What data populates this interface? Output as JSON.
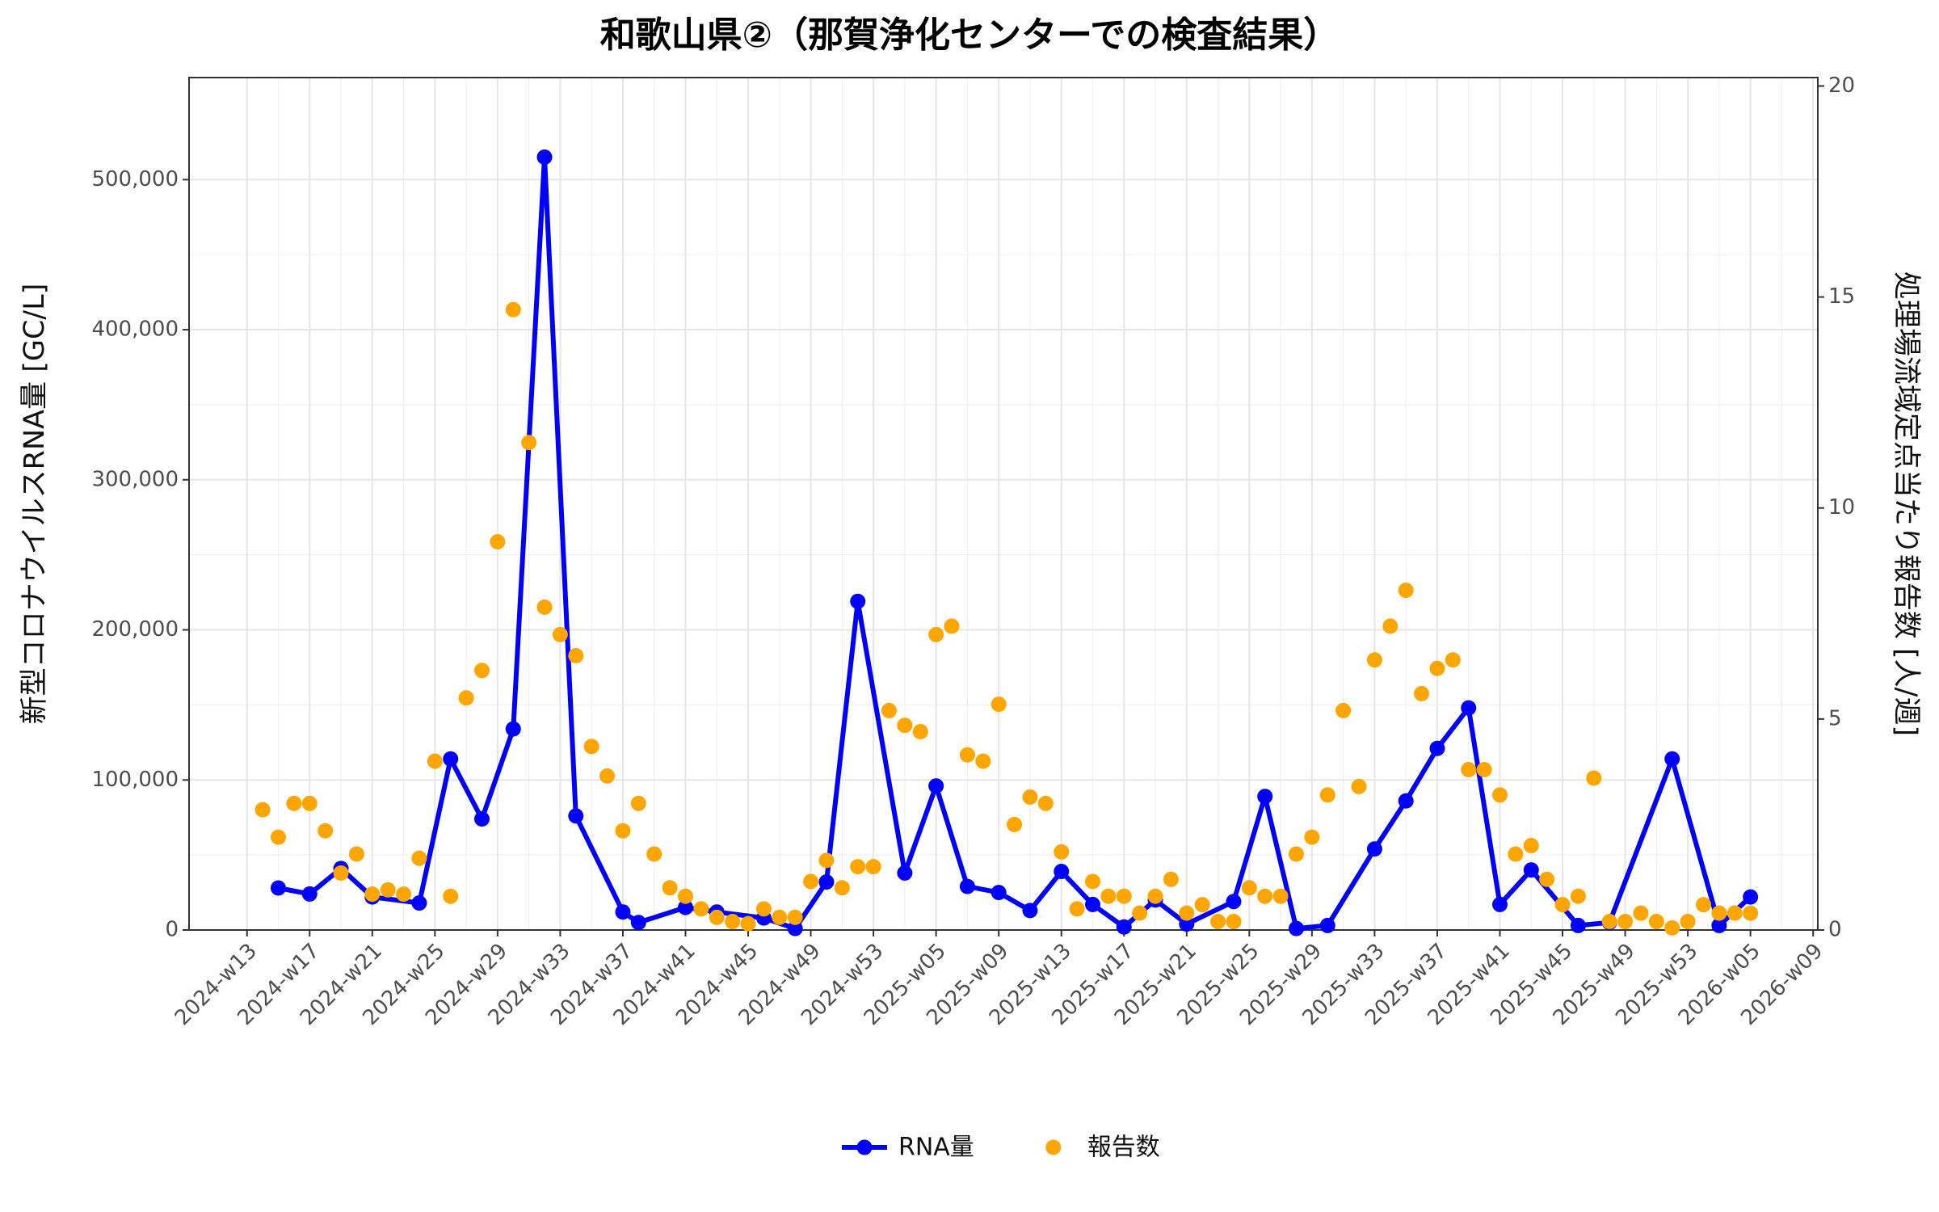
{
  "chart_data": {
    "type": "line",
    "title": "和歌山県②（那賀浄化センターでの検査結果）",
    "y_label": "新型コロナウイルスRNA量 [GC/L]",
    "y2_label": "処理場流域定点当たり報告数 [人/週]",
    "xticks": [
      "2024-w13",
      "2024-w17",
      "2024-w21",
      "2024-w25",
      "2024-w29",
      "2024-w33",
      "2024-w37",
      "2024-w41",
      "2024-w45",
      "2024-w49",
      "2024-w53",
      "2025-w05",
      "2025-w09",
      "2025-w13",
      "2025-w17",
      "2025-w21",
      "2025-w25",
      "2025-w29",
      "2025-w33",
      "2025-w37",
      "2025-w41",
      "2025-w45",
      "2025-w49",
      "2025-w53",
      "2026-w05",
      "2026-w09"
    ],
    "ylim": [
      0,
      568000
    ],
    "yticks": [
      0,
      {
        "value": 100000,
        "label": "100,000"
      },
      {
        "value": 200000,
        "label": "200,000"
      },
      {
        "value": 300000,
        "label": "300,000"
      },
      {
        "value": 400000,
        "label": "400,000"
      },
      {
        "value": 500000,
        "label": "500,000"
      }
    ],
    "y2lim": [
      0,
      20.2
    ],
    "y2ticks": [
      0,
      5,
      10,
      15,
      20
    ],
    "grid": true,
    "minor_grid": true,
    "legend_position": "bottom",
    "series": [
      {
        "name": "RNA量",
        "color": "#0000ff",
        "axis": "y",
        "mode": "lines+markers",
        "x": [
          "2024-w15",
          "2024-w17",
          "2024-w19",
          "2024-w21",
          "2024-w24",
          "2024-w26",
          "2024-w28",
          "2024-w30",
          "2024-w32",
          "2024-w34",
          "2024-w37",
          "2024-w38",
          "2024-w41",
          "2024-w43",
          "2024-w46",
          "2024-w48",
          "2024-w50",
          "2024-w52",
          "2025-w03",
          "2025-w05",
          "2025-w07",
          "2025-w09",
          "2025-w11",
          "2025-w13",
          "2025-w15",
          "2025-w17",
          "2025-w19",
          "2025-w21",
          "2025-w24",
          "2025-w26",
          "2025-w28",
          "2025-w30",
          "2025-w33",
          "2025-w35",
          "2025-w37",
          "2025-w39",
          "2025-w41",
          "2025-w43",
          "2025-w46",
          "2025-w48",
          "2025-w52",
          "2026-w03",
          "2026-w05"
        ],
        "values": [
          28000,
          24000,
          41000,
          22000,
          18000,
          114000,
          74000,
          134000,
          515000,
          76000,
          12000,
          5000,
          15000,
          12000,
          8000,
          1000,
          32000,
          219000,
          38000,
          96000,
          29000,
          25000,
          13000,
          39000,
          17000,
          2000,
          20000,
          4000,
          19000,
          89000,
          1000,
          3000,
          54000,
          86000,
          121000,
          148000,
          17000,
          40000,
          3000,
          5000,
          114000,
          3000,
          22000
        ]
      },
      {
        "name": "報告数",
        "color": "#ffa500",
        "axis": "y2",
        "mode": "markers",
        "x": [
          "2024-w14",
          "2024-w15",
          "2024-w16",
          "2024-w17",
          "2024-w18",
          "2024-w19",
          "2024-w20",
          "2024-w21",
          "2024-w22",
          "2024-w23",
          "2024-w24",
          "2024-w25",
          "2024-w26",
          "2024-w27",
          "2024-w28",
          "2024-w29",
          "2024-w30",
          "2024-w31",
          "2024-w32",
          "2024-w33",
          "2024-w34",
          "2024-w35",
          "2024-w36",
          "2024-w37",
          "2024-w38",
          "2024-w39",
          "2024-w40",
          "2024-w41",
          "2024-w42",
          "2024-w43",
          "2024-w44",
          "2024-w45",
          "2024-w46",
          "2024-w47",
          "2024-w48",
          "2024-w49",
          "2024-w50",
          "2024-w51",
          "2024-w52",
          "2025-w01",
          "2025-w02",
          "2025-w03",
          "2025-w04",
          "2025-w05",
          "2025-w06",
          "2025-w07",
          "2025-w08",
          "2025-w09",
          "2025-w10",
          "2025-w11",
          "2025-w12",
          "2025-w13",
          "2025-w14",
          "2025-w15",
          "2025-w16",
          "2025-w17",
          "2025-w18",
          "2025-w19",
          "2025-w20",
          "2025-w21",
          "2025-w22",
          "2025-w23",
          "2025-w24",
          "2025-w25",
          "2025-w26",
          "2025-w27",
          "2025-w28",
          "2025-w29",
          "2025-w30",
          "2025-w31",
          "2025-w32",
          "2025-w33",
          "2025-w34",
          "2025-w35",
          "2025-w36",
          "2025-w37",
          "2025-w38",
          "2025-w39",
          "2025-w40",
          "2025-w41",
          "2025-w42",
          "2025-w43",
          "2025-w44",
          "2025-w45",
          "2025-w46",
          "2025-w47",
          "2025-w48",
          "2025-w49",
          "2025-w50",
          "2025-w51",
          "2025-w52",
          "2026-w01",
          "2026-w02",
          "2026-w03",
          "2026-w04",
          "2026-w05"
        ],
        "values": [
          2.85,
          2.2,
          3.0,
          3.0,
          2.35,
          1.35,
          1.8,
          0.85,
          0.95,
          0.85,
          1.7,
          4.0,
          0.8,
          5.5,
          6.15,
          9.2,
          14.7,
          11.55,
          7.65,
          7.0,
          6.5,
          4.35,
          3.65,
          2.35,
          3.0,
          1.8,
          1.0,
          0.8,
          0.5,
          0.3,
          0.2,
          0.15,
          0.5,
          0.3,
          0.3,
          1.15,
          1.65,
          1.0,
          1.5,
          1.5,
          5.2,
          4.85,
          4.7,
          7.0,
          7.2,
          4.15,
          4.0,
          5.35,
          2.5,
          3.15,
          3.0,
          1.85,
          0.5,
          1.15,
          0.8,
          0.8,
          0.4,
          0.8,
          1.2,
          0.4,
          0.6,
          0.2,
          0.2,
          1.0,
          0.8,
          0.8,
          1.8,
          2.2,
          3.2,
          5.2,
          3.4,
          6.4,
          7.2,
          8.05,
          5.6,
          6.2,
          6.4,
          3.8,
          3.8,
          3.2,
          1.8,
          2.0,
          1.2,
          0.6,
          0.8,
          3.6,
          0.2,
          0.2,
          0.4,
          0.2,
          0.05,
          0.2,
          0.6,
          0.4,
          0.4,
          0.4
        ]
      }
    ]
  }
}
